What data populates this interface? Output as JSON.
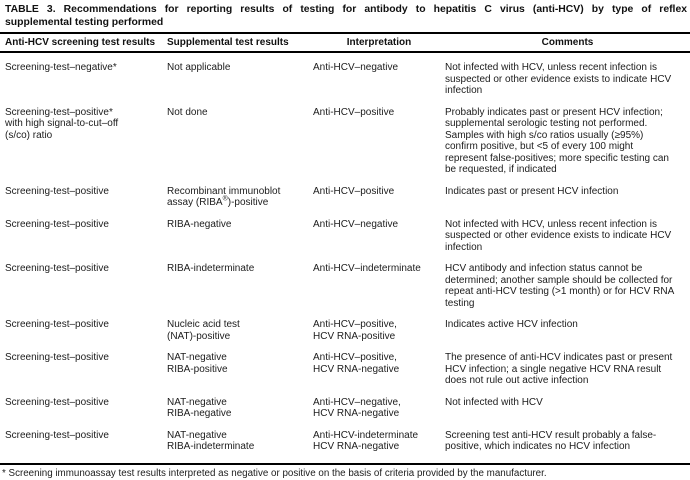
{
  "title": {
    "line1": "TABLE 3. Recommendations for reporting results of testing for antibody to hepatitis C virus (anti-HCV) by type of reflex",
    "line2": "supplemental testing performed"
  },
  "table": {
    "headers": [
      "Anti-HCV screening test results",
      "Supplemental test results",
      "Interpretation",
      "Comments"
    ],
    "rows": [
      {
        "screening": "Screening-test–negative*",
        "supplemental": "Not applicable",
        "interpretation": "Anti-HCV–negative",
        "comments": "Not infected with HCV, unless recent infection is\nsuspected or other evidence exists to indicate HCV\ninfection"
      },
      {
        "screening": "Screening-test–positive*\nwith high signal-to-cut–off\n(s/co) ratio",
        "supplemental": "Not done",
        "interpretation": "Anti-HCV–positive",
        "comments": "Probably indicates past or present HCV infection;\nsupplemental serologic testing not performed.\nSamples with high s/co ratios usually (≥95%)\nconfirm positive, but <5 of every 100 might\nrepresent false-positives; more specific testing can\nbe requested, if indicated"
      },
      {
        "screening": "Screening-test–positive",
        "supplemental": "Recombinant immunoblot\nassay (RIBA®)-positive",
        "interpretation": "Anti-HCV–positive",
        "comments": "Indicates past or present HCV infection"
      },
      {
        "screening": "Screening-test–positive",
        "supplemental": "RIBA-negative",
        "interpretation": "Anti-HCV–negative",
        "comments": "Not infected with HCV, unless recent infection is\nsuspected or other evidence exists to indicate HCV\ninfection"
      },
      {
        "screening": "Screening-test–positive",
        "supplemental": "RIBA-indeterminate",
        "interpretation": "Anti-HCV–indeterminate",
        "comments": "HCV antibody and infection status cannot be\ndetermined; another sample should be collected for\nrepeat anti-HCV testing (>1 month) or for HCV RNA\ntesting"
      },
      {
        "screening": "Screening-test–positive",
        "supplemental": "Nucleic acid test\n(NAT)-positive",
        "interpretation": "Anti-HCV–positive,\nHCV RNA-positive",
        "comments": "Indicates active HCV infection"
      },
      {
        "screening": "Screening-test–positive",
        "supplemental": "NAT-negative\nRIBA-positive",
        "interpretation": "Anti-HCV–positive,\nHCV RNA-negative",
        "comments": "The presence of anti-HCV indicates past or present\nHCV infection; a single negative HCV RNA result\ndoes not rule out active infection"
      },
      {
        "screening": "Screening-test–positive",
        "supplemental": "NAT-negative\nRIBA-negative",
        "interpretation": "Anti-HCV–negative,\nHCV RNA-negative",
        "comments": "Not infected with HCV"
      },
      {
        "screening": "Screening-test–positive",
        "supplemental": "NAT-negative\nRIBA-indeterminate",
        "interpretation": "Anti-HCV-indeterminate\nHCV RNA-negative",
        "comments": "Screening test anti-HCV result probably a false-\npositive, which indicates no HCV infection"
      }
    ]
  },
  "footnote": "* Screening immunoassay test results interpreted as negative or positive on the basis of criteria provided by the manufacturer.",
  "colors": {
    "background": "#ffffff",
    "text": "#1c1c1c",
    "rule": "#000000"
  }
}
